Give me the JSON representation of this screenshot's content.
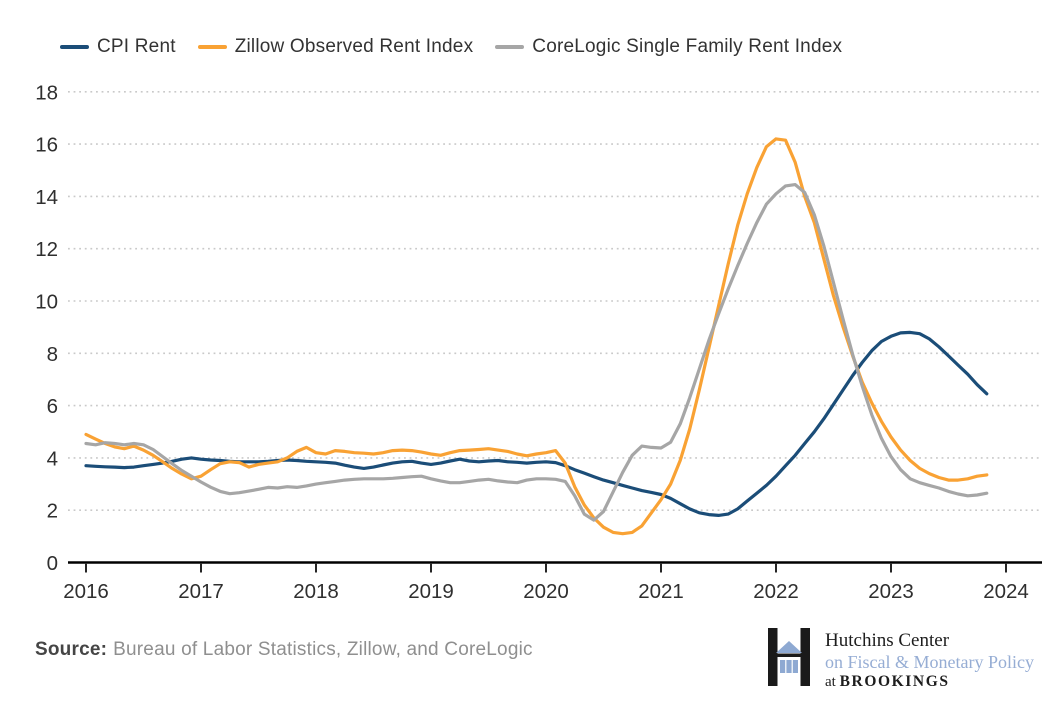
{
  "legend": {
    "items": [
      {
        "label": "CPI Rent"
      },
      {
        "label": "Zillow Observed Rent Index"
      },
      {
        "label": "CoreLogic Single Family Rent Index"
      }
    ]
  },
  "chart_data": {
    "type": "line",
    "title": "",
    "xlabel": "",
    "ylabel": "",
    "x_unit": "decimal_year_monthly",
    "x_start": 2016.0,
    "x_step": 0.0833333,
    "xticks": [
      2016,
      2017,
      2018,
      2019,
      2020,
      2021,
      2022,
      2023,
      2024
    ],
    "yticks": [
      0,
      2,
      4,
      6,
      8,
      10,
      12,
      14,
      16,
      18
    ],
    "ylim": [
      0,
      18
    ],
    "grid": "horizontal-dotted",
    "legend_position": "top-left",
    "series": [
      {
        "name": "CPI Rent",
        "color": "#1b4d78",
        "values": [
          3.7,
          3.68,
          3.66,
          3.65,
          3.63,
          3.65,
          3.7,
          3.75,
          3.8,
          3.87,
          3.95,
          4.0,
          3.95,
          3.92,
          3.9,
          3.87,
          3.85,
          3.85,
          3.85,
          3.87,
          3.9,
          3.92,
          3.9,
          3.87,
          3.85,
          3.83,
          3.8,
          3.72,
          3.65,
          3.6,
          3.65,
          3.73,
          3.8,
          3.85,
          3.87,
          3.8,
          3.75,
          3.8,
          3.88,
          3.95,
          3.88,
          3.85,
          3.88,
          3.9,
          3.85,
          3.83,
          3.8,
          3.83,
          3.85,
          3.82,
          3.7,
          3.55,
          3.42,
          3.28,
          3.15,
          3.05,
          2.95,
          2.85,
          2.75,
          2.68,
          2.6,
          2.45,
          2.25,
          2.05,
          1.9,
          1.83,
          1.8,
          1.85,
          2.05,
          2.35,
          2.65,
          2.95,
          3.3,
          3.7,
          4.1,
          4.55,
          5.0,
          5.5,
          6.05,
          6.6,
          7.15,
          7.65,
          8.1,
          8.45,
          8.65,
          8.78,
          8.8,
          8.75,
          8.55,
          8.25,
          7.9,
          7.55,
          7.2,
          6.8,
          6.45
        ]
      },
      {
        "name": "Zillow Observed Rent Index",
        "color": "#f9a234",
        "values": [
          4.9,
          4.72,
          4.55,
          4.42,
          4.35,
          4.45,
          4.3,
          4.1,
          3.85,
          3.6,
          3.38,
          3.2,
          3.3,
          3.55,
          3.78,
          3.85,
          3.82,
          3.65,
          3.75,
          3.8,
          3.85,
          4.0,
          4.25,
          4.4,
          4.2,
          4.15,
          4.28,
          4.25,
          4.2,
          4.18,
          4.15,
          4.2,
          4.28,
          4.3,
          4.28,
          4.22,
          4.15,
          4.1,
          4.2,
          4.28,
          4.3,
          4.32,
          4.35,
          4.3,
          4.25,
          4.15,
          4.08,
          4.15,
          4.2,
          4.28,
          3.8,
          2.9,
          2.2,
          1.7,
          1.35,
          1.15,
          1.1,
          1.15,
          1.4,
          1.9,
          2.4,
          3.0,
          3.9,
          5.1,
          6.6,
          8.2,
          9.8,
          11.4,
          12.9,
          14.1,
          15.1,
          15.9,
          16.2,
          16.15,
          15.3,
          14.0,
          13.0,
          11.6,
          10.2,
          9.0,
          7.9,
          6.9,
          6.1,
          5.4,
          4.8,
          4.3,
          3.9,
          3.6,
          3.4,
          3.25,
          3.15,
          3.15,
          3.2,
          3.3,
          3.35
        ]
      },
      {
        "name": "CoreLogic Single Family Rent Index",
        "color": "#a6a6a6",
        "values": [
          4.55,
          4.5,
          4.58,
          4.55,
          4.5,
          4.55,
          4.5,
          4.32,
          4.05,
          3.78,
          3.52,
          3.3,
          3.08,
          2.88,
          2.72,
          2.63,
          2.67,
          2.73,
          2.8,
          2.87,
          2.85,
          2.9,
          2.87,
          2.93,
          3.0,
          3.05,
          3.1,
          3.15,
          3.18,
          3.2,
          3.2,
          3.2,
          3.22,
          3.25,
          3.28,
          3.3,
          3.2,
          3.12,
          3.05,
          3.05,
          3.1,
          3.15,
          3.18,
          3.12,
          3.08,
          3.05,
          3.15,
          3.2,
          3.2,
          3.18,
          3.1,
          2.55,
          1.85,
          1.62,
          1.95,
          2.7,
          3.45,
          4.1,
          4.45,
          4.4,
          4.38,
          4.6,
          5.3,
          6.3,
          7.4,
          8.5,
          9.5,
          10.45,
          11.35,
          12.2,
          13.0,
          13.7,
          14.1,
          14.4,
          14.45,
          14.15,
          13.3,
          12.1,
          10.7,
          9.3,
          7.95,
          6.75,
          5.65,
          4.75,
          4.05,
          3.55,
          3.2,
          3.05,
          2.95,
          2.85,
          2.72,
          2.62,
          2.55,
          2.58,
          2.65
        ]
      }
    ]
  },
  "source": {
    "label": "Source:",
    "text": "Bureau of Labor Statistics, Zillow, and CoreLogic"
  },
  "logo": {
    "line1": "Hutchins Center",
    "line2": "on Fiscal & Monetary Policy",
    "line3_prefix": "at ",
    "line3_name": "BROOKINGS",
    "glyph_black": "#1a1a1a",
    "glyph_blue": "#8ea9d2"
  },
  "colors": {
    "gridline": "#c9c9c9",
    "axis": "#000000",
    "tick_label": "#2f2f2f"
  }
}
